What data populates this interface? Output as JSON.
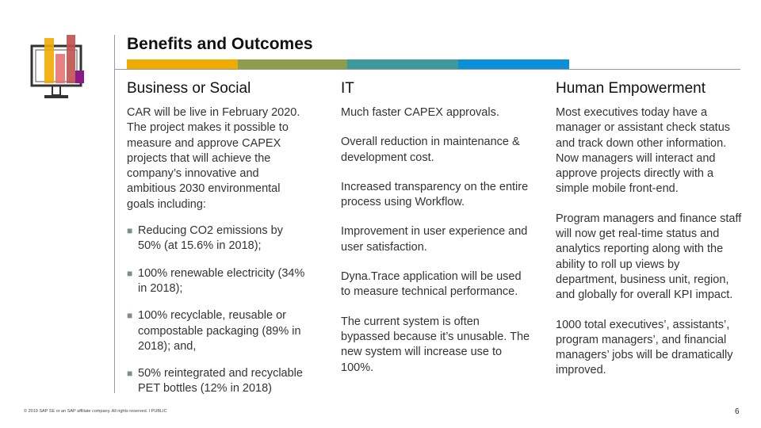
{
  "header": {
    "title": "Benefits and Outcomes"
  },
  "colors": {
    "bar_1": "#f0ab00",
    "bar_2": "#8c9d4b",
    "bar_3": "#3c9a9a",
    "bar_4": "#0a8fd8",
    "icon_orange": "#f0ab00",
    "icon_coral": "#e57373",
    "icon_red": "#c0504d",
    "icon_magenta": "#8b1a89"
  },
  "icon": {
    "name": "monitor-bar-chart-icon"
  },
  "columns": {
    "business": {
      "heading": "Business or Social",
      "intro": "CAR will be live in February 2020. The project makes it possible to measure and approve CAPEX projects that will achieve the company’s innovative and ambitious 2030 environmental goals including:",
      "bullets": [
        "Reducing CO2 emissions by 50% (at 15.6% in 2018);",
        "100% renewable electricity (34% in 2018);",
        "100% recyclable, reusable or compostable packaging (89% in 2018); and,",
        "50% reintegrated and recyclable PET bottles (12% in 2018)"
      ]
    },
    "it": {
      "heading": "IT",
      "paragraphs": [
        "Much faster CAPEX approvals.",
        "Overall reduction in maintenance & development cost.",
        "Increased transparency on the entire process using Workflow.",
        "Improvement in user experience and user satisfaction.",
        "Dyna.Trace application will be used to measure technical performance.",
        "The current system is often bypassed because it’s unusable. The new system will increase use to 100%."
      ]
    },
    "human": {
      "heading": "Human Empowerment",
      "paragraphs": [
        "Most executives today have a manager or assistant check status and track down other information. Now managers will interact and approve projects directly with a simple mobile front-end.",
        "Program managers and finance staff will now get real-time status and analytics reporting along with the ability to roll up views by department, business unit, region, and globally for overall KPI impact.",
        "1000 total executives’, assistants’, program managers’, and financial managers’ jobs will be dramatically improved."
      ]
    }
  },
  "footer": {
    "copyright": "© 2019 SAP SE or an SAP affiliate company. All rights reserved. ǀ PUBLIC",
    "page_number": "6"
  }
}
